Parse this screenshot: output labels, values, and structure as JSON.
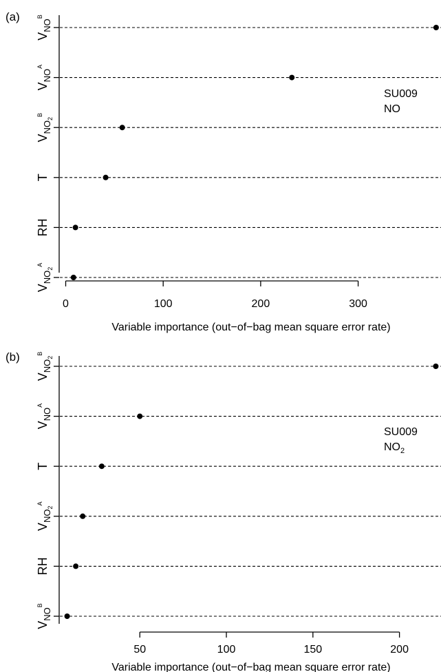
{
  "chart_data": [
    {
      "type": "scatter",
      "panel_label": "(a)",
      "title": "",
      "xlabel": "Variable importance (out−of−bag mean square error rate)",
      "ylabel": "",
      "xlim": [
        -6,
        385
      ],
      "xticks": [
        0,
        100,
        200,
        300
      ],
      "grid": "horizontal-dashed",
      "annotation": [
        "SU009",
        "NO"
      ],
      "points": [
        {
          "label": {
            "base": "V",
            "sub": "NO",
            "sub2": "",
            "sup": "B"
          },
          "value": 380
        },
        {
          "label": {
            "base": "V",
            "sub": "NO",
            "sub2": "",
            "sup": "A"
          },
          "value": 232
        },
        {
          "label": {
            "base": "V",
            "sub": "NO",
            "sub2": "2",
            "sup": "B"
          },
          "value": 58
        },
        {
          "label": {
            "base": "T",
            "sub": "",
            "sub2": "",
            "sup": ""
          },
          "value": 41
        },
        {
          "label": {
            "base": "RH",
            "sub": "",
            "sub2": "",
            "sup": ""
          },
          "value": 10
        },
        {
          "label": {
            "base": "V",
            "sub": "NO",
            "sub2": "2",
            "sup": "A"
          },
          "value": 8
        }
      ]
    },
    {
      "type": "scatter",
      "panel_label": "(b)",
      "title": "",
      "xlabel": "Variable importance (out−of−bag mean square error rate)",
      "ylabel": "",
      "xlim": [
        3.8,
        224
      ],
      "xticks": [
        50,
        100,
        150,
        200
      ],
      "grid": "horizontal-dashed",
      "annotation": [
        "SU009",
        "NO",
        "2"
      ],
      "points": [
        {
          "label": {
            "base": "V",
            "sub": "NO",
            "sub2": "2",
            "sup": "B"
          },
          "value": 221
        },
        {
          "label": {
            "base": "V",
            "sub": "NO",
            "sub2": "",
            "sup": "A"
          },
          "value": 50
        },
        {
          "label": {
            "base": "T",
            "sub": "",
            "sub2": "",
            "sup": ""
          },
          "value": 28
        },
        {
          "label": {
            "base": "V",
            "sub": "NO",
            "sub2": "2",
            "sup": "A"
          },
          "value": 17
        },
        {
          "label": {
            "base": "RH",
            "sub": "",
            "sub2": "",
            "sup": ""
          },
          "value": 13
        },
        {
          "label": {
            "base": "V",
            "sub": "NO",
            "sub2": "",
            "sup": "B"
          },
          "value": 8
        }
      ]
    }
  ]
}
